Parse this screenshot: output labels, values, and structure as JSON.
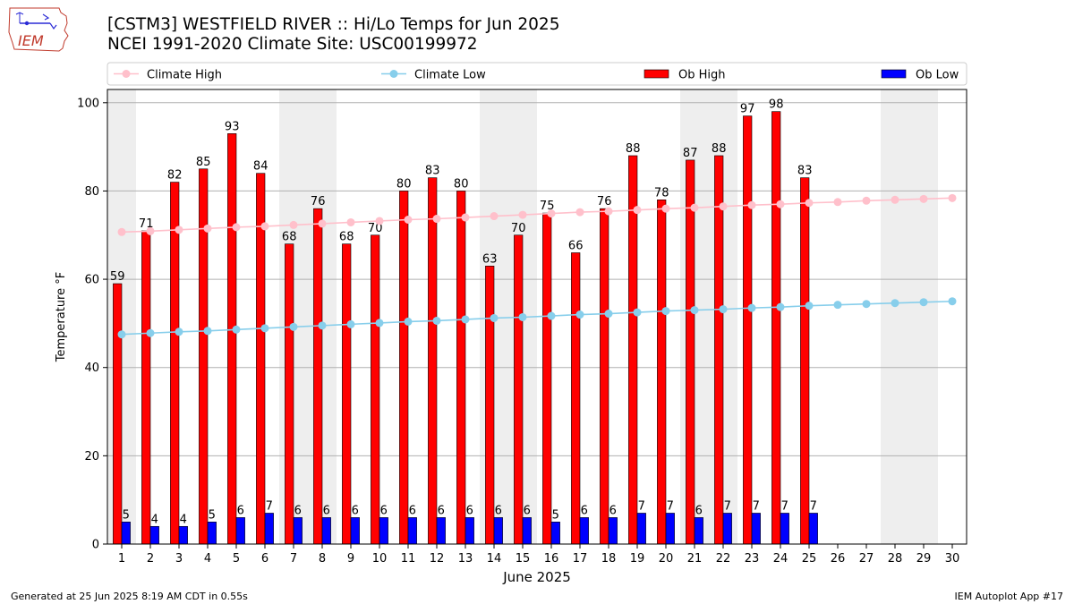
{
  "logo": {
    "text": "IEM"
  },
  "header": {
    "title_line1": "[CSTM3] WESTFIELD RIVER :: Hi/Lo Temps for Jun 2025",
    "title_line2": "NCEI 1991-2020 Climate Site: USC00199972"
  },
  "footer": {
    "generated": "Generated at 25 Jun 2025 8:19 AM CDT in 0.55s",
    "app": "IEM Autoplot App #17"
  },
  "colors": {
    "climate_high": "#ffc0cb",
    "climate_low": "#87ceeb",
    "ob_high": "#ff0000",
    "ob_low": "#0000ff",
    "weekend_band": "#eeeeee"
  },
  "chart_data": {
    "type": "bar",
    "xlabel": "June 2025",
    "ylabel": "Temperature °F",
    "ylim": [
      0,
      103
    ],
    "yticks": [
      0,
      20,
      40,
      60,
      80,
      100
    ],
    "grid": true,
    "legend_position": "top",
    "days": [
      1,
      2,
      3,
      4,
      5,
      6,
      7,
      8,
      9,
      10,
      11,
      12,
      13,
      14,
      15,
      16,
      17,
      18,
      19,
      20,
      21,
      22,
      23,
      24,
      25,
      26,
      27,
      28,
      29,
      30
    ],
    "weekend_day_ranges": [
      [
        1,
        1
      ],
      [
        7,
        8
      ],
      [
        14,
        15
      ],
      [
        21,
        22
      ],
      [
        28,
        29
      ]
    ],
    "series": [
      {
        "name": "Climate High",
        "kind": "line",
        "values": [
          70.7,
          70.9,
          71.2,
          71.5,
          71.8,
          72.0,
          72.3,
          72.6,
          72.9,
          73.2,
          73.5,
          73.7,
          74.0,
          74.3,
          74.6,
          74.9,
          75.2,
          75.4,
          75.7,
          76.0,
          76.2,
          76.5,
          76.8,
          77.0,
          77.3,
          77.5,
          77.8,
          78.0,
          78.2,
          78.4
        ]
      },
      {
        "name": "Climate Low",
        "kind": "line",
        "values": [
          47.5,
          47.8,
          48.1,
          48.3,
          48.6,
          48.9,
          49.2,
          49.5,
          49.8,
          50.1,
          50.4,
          50.6,
          50.9,
          51.2,
          51.4,
          51.7,
          52.0,
          52.2,
          52.5,
          52.8,
          53.0,
          53.2,
          53.5,
          53.7,
          54.0,
          54.2,
          54.4,
          54.6,
          54.8,
          55.0
        ]
      },
      {
        "name": "Ob High",
        "kind": "bar",
        "values": [
          59,
          71,
          82,
          85,
          93,
          84,
          68,
          76,
          68,
          70,
          80,
          83,
          80,
          63,
          70,
          75,
          66,
          76,
          88,
          78,
          87,
          88,
          97,
          98,
          83
        ]
      },
      {
        "name": "Ob Low",
        "kind": "bar",
        "values": [
          5,
          4,
          4,
          5,
          6,
          7,
          6,
          6,
          6,
          6,
          6,
          6,
          6,
          6,
          6,
          5,
          6,
          6,
          7,
          7,
          6,
          7,
          7,
          7,
          7
        ]
      }
    ]
  }
}
